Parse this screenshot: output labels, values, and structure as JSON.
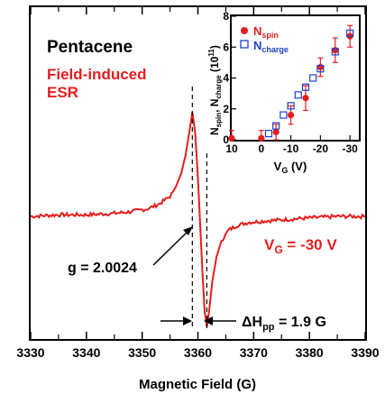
{
  "chart_data": [
    {
      "type": "line",
      "title": "Pentacene",
      "subtitle_line1": "Field-induced",
      "subtitle_line2": "ESR",
      "xlabel": "Magnetic Field (G)",
      "ylabel": "",
      "xlim": [
        3330,
        3390
      ],
      "x_ticks": [
        "3330",
        "3340",
        "3350",
        "3360",
        "3370",
        "3380",
        "3390"
      ],
      "series": [
        {
          "color": "#e41e1e",
          "x": [
            3330,
            3335,
            3340,
            3345,
            3348,
            3351,
            3353,
            3355,
            3356,
            3357,
            3357.8,
            3358.5,
            3359,
            3359.5,
            3360,
            3360.4,
            3360.8,
            3361.2,
            3361.6,
            3362,
            3362.6,
            3363.3,
            3364.2,
            3365.5,
            3367,
            3369,
            3372,
            3376,
            3380,
            3385,
            3390
          ],
          "y": [
            0,
            0.01,
            0.01,
            0.02,
            0.03,
            0.05,
            0.08,
            0.13,
            0.19,
            0.28,
            0.4,
            0.56,
            0.68,
            0.55,
            0.25,
            -0.05,
            -0.35,
            -0.62,
            -0.72,
            -0.62,
            -0.42,
            -0.27,
            -0.16,
            -0.09,
            -0.06,
            -0.04,
            -0.03,
            -0.02,
            -0.01,
            0,
            0
          ]
        }
      ],
      "annotations": {
        "g_value": "g = 2.0024",
        "vg_label": "V",
        "vg_sub": "G",
        "vg_value": " = -30 V",
        "width_prefix": "ΔH",
        "width_sub": "pp",
        "width_value": " = 1.9 G"
      }
    },
    {
      "type": "scatter",
      "xlabel_main": "V",
      "xlabel_sub": "G",
      "xlabel_unit": " (V)",
      "ylabel_main": "N",
      "ylabel_sub1": "spin",
      "ylabel_sep": ", N",
      "ylabel_sub2": "charge",
      "ylabel_unit": " (10",
      "ylabel_exp": "11",
      "ylabel_close": ")",
      "xlim": [
        10,
        -33
      ],
      "ylim": [
        0,
        8
      ],
      "x_ticks": [
        "10",
        "0",
        "-10",
        "-20",
        "-30"
      ],
      "y_ticks": [
        "0",
        "2",
        "4",
        "6",
        "8"
      ],
      "legend_position": "top-left",
      "series": [
        {
          "name_main": "N",
          "name_sub": "spin",
          "marker": "filled-circle",
          "color": "#e41e1e",
          "x": [
            10,
            0,
            -5,
            -10,
            -15,
            -20,
            -25,
            -30
          ],
          "y": [
            0.1,
            0.1,
            0.5,
            1.6,
            2.7,
            4.7,
            5.8,
            6.7
          ],
          "err": [
            0.5,
            0.5,
            0.5,
            0.6,
            0.8,
            0.6,
            0.8,
            0.7
          ]
        },
        {
          "name_main": "N",
          "name_sub": "charge",
          "marker": "open-square",
          "color": "#1f3fd0",
          "x": [
            -2.5,
            -5,
            -7.5,
            -10,
            -12.5,
            -15,
            -17.5,
            -20,
            -25,
            -30
          ],
          "y": [
            0.4,
            0.9,
            1.6,
            2.2,
            2.9,
            3.4,
            4.0,
            4.6,
            5.7,
            6.9
          ]
        }
      ]
    }
  ]
}
